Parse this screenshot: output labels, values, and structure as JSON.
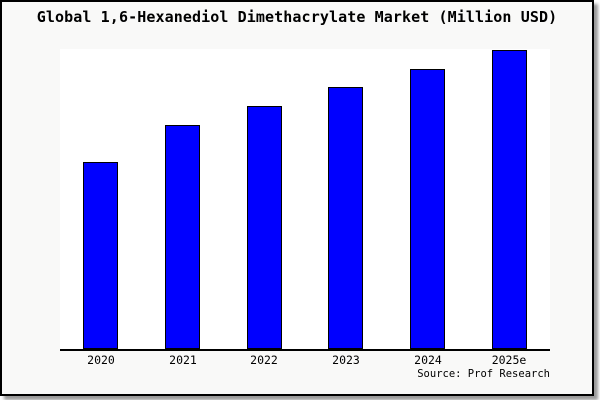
{
  "window": {
    "title": "Global 1,6-Hexanediol Dimethacrylate Market (Million USD)"
  },
  "source": {
    "label": "Source: Prof Research"
  },
  "colors": {
    "bar_fill": "#0000ff",
    "bar_border": "#000000",
    "axis": "#000000",
    "frame_border": "#000000",
    "page_bg": "#f9f9f8",
    "plot_bg": "#ffffff",
    "shadow": "#999999"
  },
  "chart_data": {
    "type": "bar",
    "title": "Global 1,6-Hexanediol Dimethacrylate Market (Million USD)",
    "categories": [
      "2020",
      "2021",
      "2022",
      "2023",
      "2024",
      "2025e"
    ],
    "values": [
      62.6,
      75.0,
      81.3,
      87.7,
      93.8,
      100.0
    ],
    "values_note": "y-axis unlabeled; values estimated relative to 2025e = 100",
    "xlabel": "",
    "ylabel": "",
    "ylim": [
      0,
      100
    ],
    "grid": false,
    "legend": false,
    "annotation": "Source: Prof Research"
  }
}
